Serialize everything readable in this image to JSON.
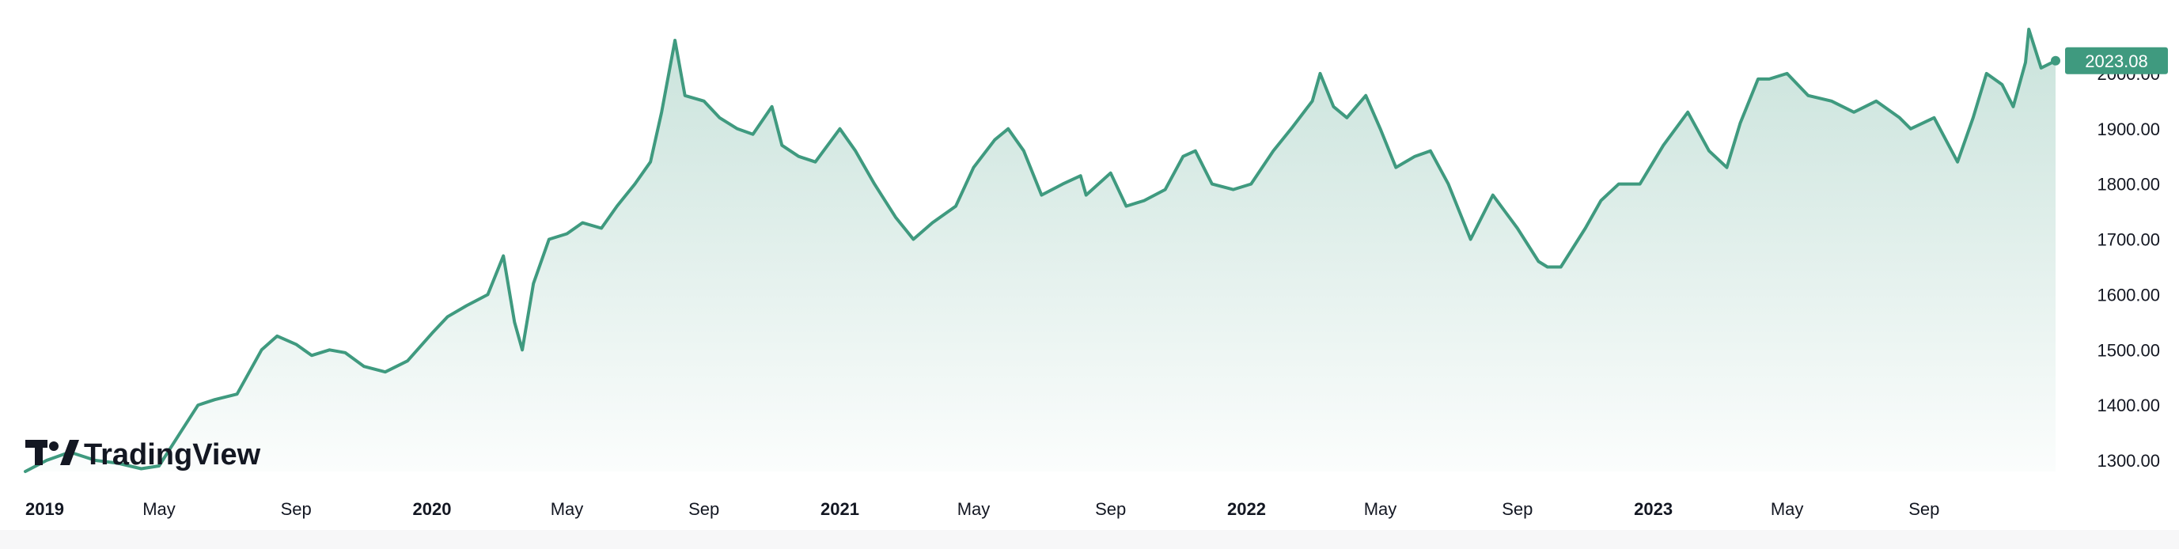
{
  "chart_data": {
    "type": "area",
    "title": "",
    "xlabel": "",
    "ylabel": "",
    "series": [
      {
        "x": [
          "2019-01-01",
          "2019-01-20",
          "2019-02-10",
          "2019-03-05",
          "2019-03-25",
          "2019-04-15",
          "2019-05-01",
          "2019-05-20",
          "2019-06-05",
          "2019-06-20",
          "2019-07-10",
          "2019-08-01",
          "2019-08-15",
          "2019-09-01",
          "2019-09-15",
          "2019-10-01",
          "2019-10-15",
          "2019-11-01",
          "2019-11-20",
          "2019-12-10",
          "2020-01-01",
          "2020-01-15",
          "2020-02-01",
          "2020-02-20",
          "2020-03-05",
          "2020-03-15",
          "2020-03-22",
          "2020-04-01",
          "2020-04-15",
          "2020-05-01",
          "2020-05-15",
          "2020-06-01",
          "2020-06-15",
          "2020-07-01",
          "2020-07-15",
          "2020-07-25",
          "2020-08-06",
          "2020-08-15",
          "2020-09-01",
          "2020-09-15",
          "2020-10-01",
          "2020-10-15",
          "2020-11-01",
          "2020-11-10",
          "2020-11-25",
          "2020-12-10",
          "2021-01-01",
          "2021-01-15",
          "2021-02-01",
          "2021-02-20",
          "2021-03-08",
          "2021-03-25",
          "2021-04-15",
          "2021-05-01",
          "2021-05-20",
          "2021-06-01",
          "2021-06-15",
          "2021-07-01",
          "2021-07-20",
          "2021-08-05",
          "2021-08-10",
          "2021-09-01",
          "2021-09-15",
          "2021-10-01",
          "2021-10-20",
          "2021-11-05",
          "2021-11-16",
          "2021-12-01",
          "2021-12-20",
          "2022-01-05",
          "2022-01-25",
          "2022-02-10",
          "2022-03-01",
          "2022-03-08",
          "2022-03-20",
          "2022-04-01",
          "2022-04-18",
          "2022-05-01",
          "2022-05-15",
          "2022-06-01",
          "2022-06-15",
          "2022-07-01",
          "2022-07-21",
          "2022-08-10",
          "2022-09-01",
          "2022-09-20",
          "2022-09-28",
          "2022-10-10",
          "2022-11-01",
          "2022-11-15",
          "2022-12-01",
          "2022-12-20",
          "2023-01-10",
          "2023-02-01",
          "2023-02-20",
          "2023-03-08",
          "2023-03-20",
          "2023-04-05",
          "2023-04-15",
          "2023-05-01",
          "2023-05-20",
          "2023-06-10",
          "2023-06-30",
          "2023-07-20",
          "2023-08-10",
          "2023-08-20",
          "2023-09-10",
          "2023-10-01",
          "2023-10-15",
          "2023-10-27",
          "2023-11-10",
          "2023-11-20",
          "2023-12-01",
          "2023-12-04",
          "2023-12-15",
          "2023-12-28"
        ],
        "values": [
          1280,
          1300,
          1315,
          1300,
          1295,
          1285,
          1290,
          1350,
          1400,
          1410,
          1420,
          1500,
          1525,
          1510,
          1490,
          1500,
          1495,
          1470,
          1460,
          1480,
          1530,
          1560,
          1580,
          1600,
          1670,
          1550,
          1500,
          1620,
          1700,
          1710,
          1730,
          1720,
          1760,
          1800,
          1840,
          1930,
          2060,
          1960,
          1950,
          1920,
          1900,
          1890,
          1940,
          1870,
          1850,
          1840,
          1900,
          1860,
          1800,
          1740,
          1700,
          1730,
          1760,
          1830,
          1880,
          1900,
          1860,
          1780,
          1800,
          1815,
          1780,
          1820,
          1760,
          1770,
          1790,
          1850,
          1860,
          1800,
          1790,
          1800,
          1860,
          1900,
          1950,
          2000,
          1940,
          1920,
          1960,
          1900,
          1830,
          1850,
          1860,
          1800,
          1700,
          1780,
          1720,
          1660,
          1650,
          1650,
          1720,
          1770,
          1800,
          1800,
          1870,
          1930,
          1860,
          1830,
          1910,
          1990,
          1990,
          2000,
          1960,
          1950,
          1930,
          1950,
          1920,
          1900,
          1920,
          1840,
          1920,
          2000,
          1980,
          1940,
          2020,
          2080,
          2010,
          2023
        ]
      }
    ],
    "ylim": [
      1280,
      2090
    ],
    "yticks": [
      "2000.00",
      "1900.00",
      "1800.00",
      "1700.00",
      "1600.00",
      "1500.00",
      "1400.00",
      "1300.00"
    ],
    "xticks": [
      {
        "label": "2019",
        "date": "2019-01-01",
        "year": true
      },
      {
        "label": "May",
        "date": "2019-05-01",
        "year": false
      },
      {
        "label": "Sep",
        "date": "2019-09-01",
        "year": false
      },
      {
        "label": "2020",
        "date": "2020-01-01",
        "year": true
      },
      {
        "label": "May",
        "date": "2020-05-01",
        "year": false
      },
      {
        "label": "Sep",
        "date": "2020-09-01",
        "year": false
      },
      {
        "label": "2021",
        "date": "2021-01-01",
        "year": true
      },
      {
        "label": "May",
        "date": "2021-05-01",
        "year": false
      },
      {
        "label": "Sep",
        "date": "2021-09-01",
        "year": false
      },
      {
        "label": "2022",
        "date": "2022-01-01",
        "year": true
      },
      {
        "label": "May",
        "date": "2022-05-01",
        "year": false
      },
      {
        "label": "Sep",
        "date": "2022-09-01",
        "year": false
      },
      {
        "label": "2023",
        "date": "2023-01-01",
        "year": true
      },
      {
        "label": "May",
        "date": "2023-05-01",
        "year": false
      },
      {
        "label": "Sep",
        "date": "2023-09-01",
        "year": false
      }
    ],
    "last_price": 2023.08,
    "last_price_label": "2023.08",
    "line_color": "#3f9a7f",
    "fill_color": "#3f9a7f",
    "grid": false,
    "watermark_text": "TradingView"
  }
}
